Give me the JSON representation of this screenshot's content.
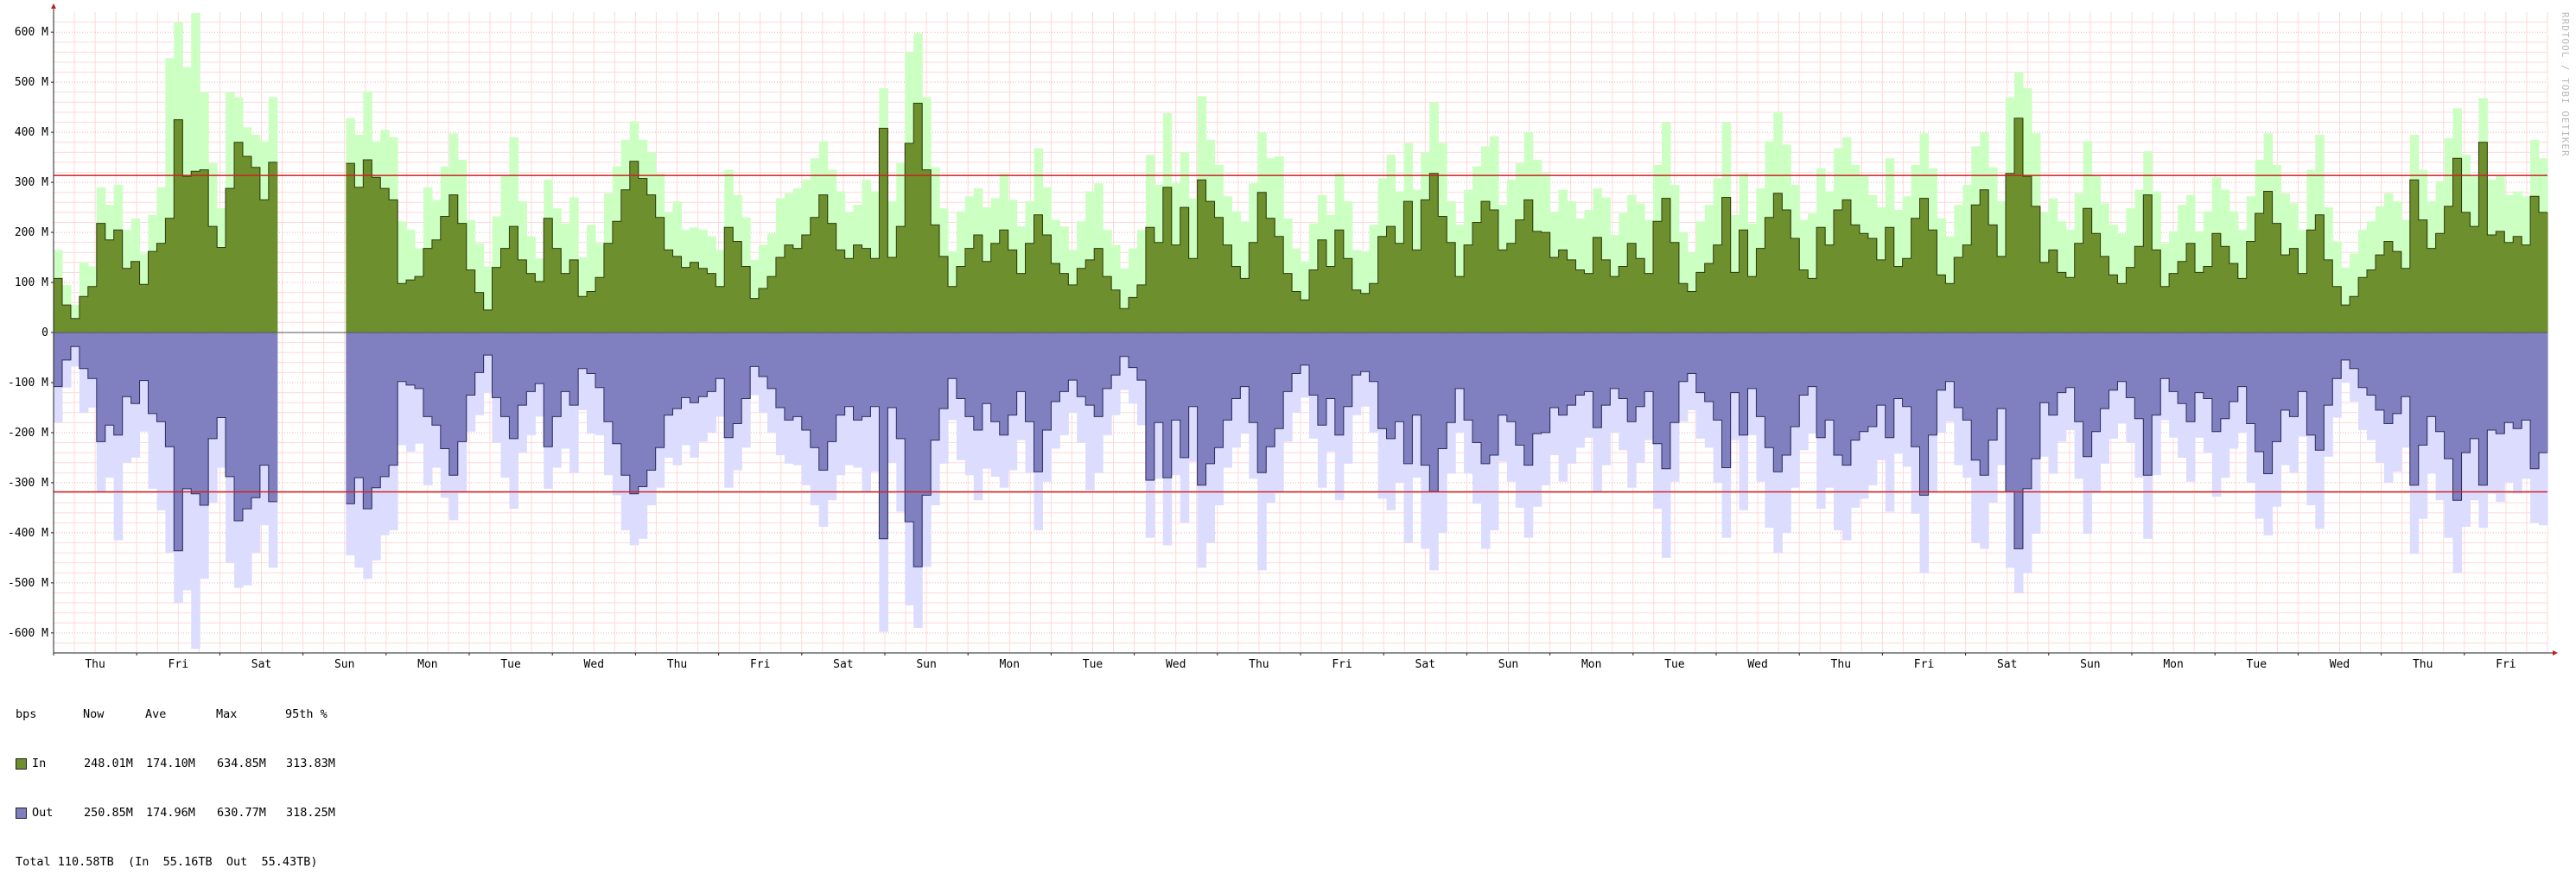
{
  "watermark": "RRDTOOL / TOBI OETIKER",
  "chart_data": {
    "type": "area",
    "title": "",
    "xlabel": "",
    "ylabel": "",
    "ylim": [
      -640,
      640
    ],
    "yticks": [
      600,
      500,
      400,
      300,
      200,
      100,
      0,
      -100,
      -200,
      -300,
      -400,
      -500,
      -600
    ],
    "ytick_labels": [
      "600 M",
      "500 M",
      "400 M",
      "300 M",
      "200 M",
      "100 M",
      "0",
      "-100 M",
      "-200 M",
      "-300 M",
      "-400 M",
      "-500 M",
      "-600 M"
    ],
    "x_days": [
      "Thu",
      "Fri",
      "Sat",
      "Sun",
      "Mon",
      "Tue",
      "Wed",
      "Thu",
      "Fri",
      "Sat",
      "Sun",
      "Mon",
      "Tue",
      "Wed",
      "Thu",
      "Fri",
      "Sat",
      "Sun",
      "Mon",
      "Tue",
      "Wed",
      "Thu",
      "Fri",
      "Sat",
      "Sun",
      "Mon",
      "Tue",
      "Wed",
      "Thu",
      "Fri"
    ],
    "grid": true,
    "percentile_95": {
      "in": 313.83,
      "out": -318.25
    },
    "series_in_avg": [
      108,
      55,
      28,
      72,
      92,
      218,
      185,
      205,
      128,
      142,
      96,
      162,
      178,
      228,
      425,
      312,
      322,
      325,
      212,
      170,
      288,
      380,
      352,
      330,
      265,
      340,
      null,
      null,
      null,
      null,
      null,
      null,
      null,
      null,
      338,
      290,
      345,
      310,
      288,
      265,
      98,
      105,
      112,
      168,
      185,
      232,
      275,
      218,
      125,
      80,
      45,
      130,
      168,
      212,
      145,
      118,
      102,
      228,
      168,
      118,
      145,
      72,
      82,
      110,
      178,
      222,
      285,
      342,
      308,
      275,
      230,
      165,
      152,
      130,
      140,
      128,
      118,
      92,
      210,
      182,
      132,
      68,
      88,
      112,
      150,
      175,
      168,
      195,
      230,
      275,
      218,
      165,
      148,
      175,
      168,
      148,
      408,
      150,
      212,
      378,
      458,
      325,
      215,
      152,
      92,
      132,
      168,
      195,
      142,
      178,
      205,
      165,
      118,
      178,
      235,
      195,
      138,
      118,
      95,
      128,
      145,
      168,
      112,
      85,
      48,
      70,
      95,
      210,
      180,
      290,
      175,
      250,
      148,
      305,
      262,
      230,
      175,
      132,
      108,
      180,
      280,
      228,
      192,
      118,
      82,
      65,
      125,
      185,
      132,
      205,
      148,
      85,
      78,
      98,
      192,
      212,
      178,
      262,
      165,
      265,
      318,
      232,
      180,
      112,
      175,
      220,
      262,
      245,
      165,
      178,
      225,
      265,
      202,
      200,
      150,
      165,
      145,
      125,
      118,
      190,
      145,
      112,
      132,
      178,
      148,
      118,
      222,
      268,
      180,
      98,
      82,
      120,
      138,
      175,
      270,
      120,
      205,
      112,
      168,
      230,
      278,
      245,
      188,
      125,
      108,
      210,
      175,
      245,
      265,
      215,
      198,
      188,
      145,
      210,
      132,
      148,
      228,
      268,
      205,
      115,
      98,
      150,
      175,
      255,
      285,
      215,
      152,
      318,
      428,
      312,
      252,
      140,
      165,
      120,
      110,
      178,
      248,
      198,
      152,
      115,
      98,
      130,
      172,
      275,
      165,
      92,
      118,
      142,
      178,
      120,
      132,
      198,
      172,
      138,
      108,
      182,
      238,
      282,
      218,
      155,
      168,
      118,
      205,
      235,
      145,
      92,
      55,
      72,
      110,
      125,
      155,
      182,
      162,
      128,
      305,
      225,
      168,
      198,
      252,
      348,
      240,
      212,
      380,
      195,
      202,
      180,
      192,
      175,
      272,
      240
    ],
    "series_in_max": [
      165,
      95,
      55,
      140,
      132,
      290,
      255,
      295,
      205,
      228,
      158,
      235,
      290,
      548,
      620,
      530,
      638,
      480,
      338,
      248,
      480,
      470,
      410,
      395,
      382,
      470,
      null,
      null,
      null,
      null,
      null,
      null,
      null,
      null,
      428,
      395,
      482,
      382,
      405,
      390,
      222,
      205,
      168,
      290,
      265,
      332,
      398,
      345,
      225,
      178,
      132,
      232,
      312,
      390,
      262,
      192,
      148,
      305,
      248,
      218,
      270,
      150,
      215,
      178,
      278,
      332,
      385,
      422,
      385,
      360,
      318,
      240,
      262,
      205,
      210,
      205,
      192,
      165,
      325,
      275,
      230,
      145,
      175,
      198,
      268,
      278,
      288,
      305,
      348,
      382,
      325,
      282,
      240,
      255,
      305,
      282,
      488,
      262,
      338,
      560,
      598,
      470,
      330,
      248,
      162,
      242,
      272,
      288,
      250,
      268,
      318,
      265,
      212,
      262,
      368,
      290,
      225,
      212,
      165,
      222,
      282,
      298,
      205,
      175,
      128,
      168,
      205,
      355,
      295,
      438,
      298,
      360,
      268,
      472,
      385,
      335,
      272,
      242,
      222,
      298,
      400,
      348,
      352,
      228,
      168,
      142,
      218,
      275,
      235,
      318,
      262,
      165,
      162,
      215,
      308,
      355,
      282,
      378,
      285,
      360,
      460,
      378,
      262,
      215,
      285,
      332,
      372,
      392,
      255,
      305,
      338,
      400,
      345,
      318,
      240,
      285,
      262,
      228,
      245,
      288,
      270,
      195,
      238,
      275,
      258,
      225,
      335,
      420,
      295,
      200,
      160,
      222,
      255,
      308,
      420,
      235,
      318,
      218,
      288,
      382,
      440,
      375,
      295,
      225,
      238,
      328,
      282,
      368,
      390,
      335,
      312,
      275,
      250,
      348,
      245,
      272,
      335,
      398,
      328,
      228,
      192,
      255,
      295,
      372,
      400,
      330,
      262,
      470,
      520,
      488,
      398,
      240,
      268,
      222,
      205,
      278,
      382,
      315,
      258,
      215,
      198,
      248,
      285,
      362,
      282,
      178,
      202,
      255,
      275,
      202,
      242,
      310,
      285,
      242,
      205,
      272,
      345,
      398,
      335,
      278,
      258,
      205,
      325,
      395,
      250,
      182,
      130,
      158,
      205,
      222,
      252,
      278,
      262,
      225,
      395,
      325,
      262,
      302,
      388,
      448,
      355,
      312,
      468,
      305,
      315,
      275,
      282,
      272,
      385,
      348
    ],
    "series_out_avg": [
      -108,
      -55,
      -28,
      -72,
      -92,
      -218,
      -185,
      -205,
      -128,
      -142,
      -96,
      -162,
      -178,
      -228,
      -436,
      -312,
      -322,
      -345,
      -212,
      -170,
      -288,
      -376,
      -352,
      -330,
      -265,
      -338,
      null,
      null,
      null,
      null,
      null,
      null,
      null,
      null,
      -342,
      -290,
      -352,
      -310,
      -288,
      -265,
      -98,
      -105,
      -112,
      -168,
      -185,
      -232,
      -285,
      -218,
      -125,
      -80,
      -45,
      -130,
      -168,
      -212,
      -145,
      -118,
      -102,
      -228,
      -168,
      -118,
      -145,
      -72,
      -82,
      -110,
      -178,
      -222,
      -285,
      -322,
      -308,
      -275,
      -230,
      -165,
      -152,
      -130,
      -140,
      -128,
      -118,
      -92,
      -210,
      -182,
      -132,
      -68,
      -88,
      -112,
      -150,
      -175,
      -168,
      -195,
      -230,
      -275,
      -218,
      -165,
      -148,
      -175,
      -168,
      -148,
      -412,
      -150,
      -212,
      -378,
      -468,
      -325,
      -215,
      -152,
      -92,
      -132,
      -168,
      -195,
      -142,
      -178,
      -205,
      -165,
      -118,
      -178,
      -278,
      -195,
      -138,
      -118,
      -95,
      -128,
      -145,
      -168,
      -112,
      -85,
      -48,
      -70,
      -95,
      -295,
      -180,
      -290,
      -175,
      -250,
      -148,
      -305,
      -262,
      -230,
      -175,
      -132,
      -108,
      -180,
      -280,
      -228,
      -192,
      -118,
      -82,
      -65,
      -125,
      -185,
      -132,
      -205,
      -148,
      -85,
      -78,
      -98,
      -192,
      -212,
      -178,
      -262,
      -165,
      -265,
      -318,
      -232,
      -180,
      -112,
      -175,
      -220,
      -262,
      -245,
      -165,
      -178,
      -225,
      -265,
      -202,
      -200,
      -150,
      -165,
      -145,
      -125,
      -118,
      -190,
      -145,
      -112,
      -132,
      -178,
      -148,
      -118,
      -222,
      -272,
      -180,
      -98,
      -82,
      -120,
      -138,
      -175,
      -270,
      -120,
      -205,
      -112,
      -168,
      -230,
      -278,
      -245,
      -188,
      -125,
      -108,
      -210,
      -175,
      -245,
      -265,
      -215,
      -198,
      -188,
      -145,
      -210,
      -132,
      -148,
      -228,
      -325,
      -205,
      -115,
      -98,
      -150,
      -175,
      -255,
      -285,
      -215,
      -152,
      -318,
      -432,
      -312,
      -252,
      -140,
      -165,
      -120,
      -110,
      -178,
      -248,
      -198,
      -152,
      -115,
      -98,
      -130,
      -172,
      -285,
      -165,
      -92,
      -118,
      -142,
      -178,
      -120,
      -132,
      -198,
      -172,
      -138,
      -108,
      -182,
      -238,
      -282,
      -218,
      -155,
      -168,
      -118,
      -205,
      -235,
      -145,
      -92,
      -55,
      -72,
      -110,
      -125,
      -155,
      -182,
      -162,
      -128,
      -305,
      -225,
      -168,
      -198,
      -252,
      -335,
      -240,
      -212,
      -305,
      -195,
      -202,
      -180,
      -192,
      -175,
      -272,
      -240
    ],
    "series_out_max": [
      -180,
      -110,
      -68,
      -160,
      -150,
      -320,
      -290,
      -415,
      -260,
      -250,
      -198,
      -312,
      -355,
      -440,
      -540,
      -515,
      -632,
      -492,
      -340,
      -270,
      -460,
      -510,
      -505,
      -440,
      -385,
      -470,
      null,
      null,
      null,
      null,
      null,
      null,
      null,
      null,
      -445,
      -470,
      -492,
      -455,
      -405,
      -395,
      -225,
      -238,
      -222,
      -305,
      -270,
      -330,
      -375,
      -320,
      -198,
      -165,
      -120,
      -220,
      -290,
      -352,
      -240,
      -205,
      -168,
      -312,
      -270,
      -232,
      -280,
      -155,
      -202,
      -205,
      -285,
      -325,
      -395,
      -425,
      -412,
      -345,
      -310,
      -250,
      -265,
      -225,
      -250,
      -218,
      -200,
      -168,
      -310,
      -275,
      -230,
      -125,
      -160,
      -200,
      -245,
      -262,
      -265,
      -305,
      -345,
      -388,
      -335,
      -285,
      -265,
      -270,
      -320,
      -278,
      -598,
      -260,
      -358,
      -545,
      -590,
      -468,
      -345,
      -262,
      -175,
      -255,
      -285,
      -335,
      -272,
      -288,
      -310,
      -275,
      -215,
      -280,
      -395,
      -298,
      -232,
      -205,
      -160,
      -220,
      -315,
      -280,
      -205,
      -165,
      -115,
      -142,
      -185,
      -410,
      -292,
      -425,
      -285,
      -380,
      -258,
      -470,
      -420,
      -345,
      -270,
      -230,
      -202,
      -292,
      -475,
      -340,
      -320,
      -218,
      -160,
      -130,
      -212,
      -310,
      -238,
      -335,
      -262,
      -165,
      -148,
      -200,
      -332,
      -355,
      -300,
      -420,
      -290,
      -432,
      -475,
      -400,
      -282,
      -200,
      -282,
      -342,
      -432,
      -395,
      -258,
      -298,
      -350,
      -410,
      -348,
      -305,
      -245,
      -298,
      -262,
      -230,
      -210,
      -318,
      -265,
      -200,
      -235,
      -310,
      -260,
      -215,
      -352,
      -450,
      -298,
      -178,
      -155,
      -212,
      -230,
      -300,
      -410,
      -215,
      -355,
      -205,
      -298,
      -390,
      -440,
      -400,
      -310,
      -235,
      -202,
      -352,
      -310,
      -395,
      -415,
      -350,
      -332,
      -305,
      -255,
      -358,
      -242,
      -268,
      -362,
      -480,
      -318,
      -200,
      -178,
      -265,
      -290,
      -420,
      -432,
      -340,
      -265,
      -470,
      -520,
      -480,
      -402,
      -248,
      -282,
      -218,
      -195,
      -292,
      -402,
      -320,
      -262,
      -212,
      -182,
      -220,
      -290,
      -412,
      -285,
      -175,
      -210,
      -250,
      -298,
      -210,
      -240,
      -328,
      -290,
      -232,
      -200,
      -300,
      -372,
      -405,
      -348,
      -265,
      -280,
      -208,
      -345,
      -392,
      -248,
      -170,
      -100,
      -138,
      -195,
      -215,
      -260,
      -300,
      -278,
      -230,
      -442,
      -372,
      -282,
      -335,
      -410,
      -480,
      -388,
      -335,
      -390,
      -322,
      -338,
      -300,
      -322,
      -292,
      -380,
      -385
    ]
  },
  "legend": {
    "header": [
      "bps",
      "Now",
      "Ave",
      "Max",
      "95th %"
    ],
    "in": {
      "name": "In",
      "color": "#6d8f2d",
      "now": "248.01M",
      "ave": "174.10M",
      "max": "634.85M",
      "p95": "313.83M"
    },
    "out": {
      "name": "Out",
      "color": "#7f7fbf",
      "now": "250.85M",
      "ave": "174.96M",
      "max": "630.77M",
      "p95": "318.25M"
    },
    "total": "Total 110.58TB  (In  55.16TB  Out  55.43TB)"
  },
  "colors": {
    "in_fill": "#6d8f2d",
    "in_max": "#ccffc2",
    "in_edge": "#2e3d0f",
    "out_fill": "#8080c0",
    "out_max": "#dcdcff",
    "out_edge": "#2d2d60",
    "p95_line": "#cc2222",
    "grid_minor": "#ffd8d8",
    "grid_major": "#f0b0b0"
  }
}
